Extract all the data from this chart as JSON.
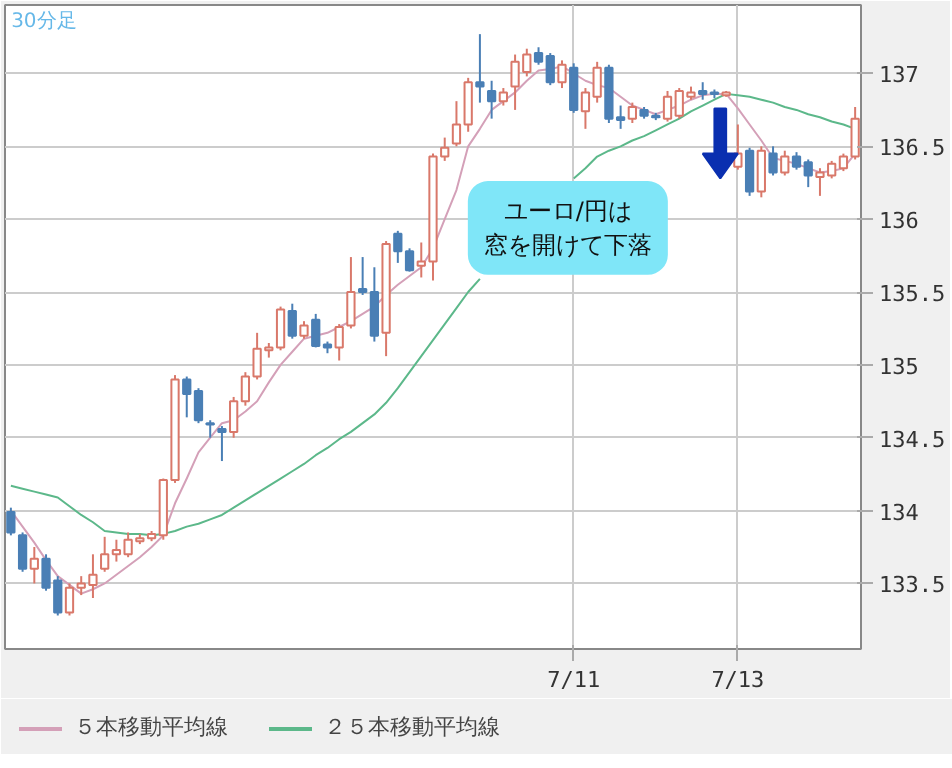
{
  "chart_data": {
    "type": "candlestick",
    "title": "30分足",
    "annotations": [
      "ユーロ/円は窓を開けて下落"
    ],
    "categories": [
      null,
      null,
      null,
      null,
      null,
      null,
      null,
      null,
      null,
      null,
      null,
      null,
      null,
      null,
      null,
      null,
      null,
      null,
      null,
      null,
      null,
      null,
      null,
      null,
      null,
      null,
      null,
      null,
      null,
      null,
      null,
      null,
      null,
      null,
      null,
      null,
      null,
      null,
      null,
      null,
      null,
      null,
      null,
      null,
      null,
      null,
      null,
      null,
      "7/11",
      null,
      null,
      null,
      null,
      null,
      null,
      null,
      null,
      null,
      null,
      null,
      null,
      null,
      "7/13",
      null,
      null,
      null,
      null,
      null,
      null,
      null,
      null,
      null,
      null
    ],
    "ohlc": [
      [
        133.99,
        134.02,
        133.83,
        133.85
      ],
      [
        133.83,
        133.85,
        133.58,
        133.6
      ],
      [
        133.6,
        133.75,
        133.5,
        133.67
      ],
      [
        133.67,
        133.7,
        133.45,
        133.47
      ],
      [
        133.52,
        133.55,
        133.28,
        133.3
      ],
      [
        133.3,
        133.5,
        133.28,
        133.47
      ],
      [
        133.47,
        133.55,
        133.42,
        133.5
      ],
      [
        133.49,
        133.7,
        133.4,
        133.56
      ],
      [
        133.6,
        133.82,
        133.58,
        133.7
      ],
      [
        133.7,
        133.8,
        133.65,
        133.73
      ],
      [
        133.7,
        133.85,
        133.68,
        133.8
      ],
      [
        133.79,
        133.84,
        133.77,
        133.81
      ],
      [
        133.81,
        133.86,
        133.79,
        133.84
      ],
      [
        133.83,
        134.22,
        133.8,
        134.21
      ],
      [
        134.21,
        134.93,
        134.19,
        134.9
      ],
      [
        134.9,
        134.92,
        134.64,
        134.8
      ],
      [
        134.82,
        134.84,
        134.6,
        134.62
      ],
      [
        134.6,
        134.62,
        134.5,
        134.59
      ],
      [
        134.56,
        134.58,
        134.34,
        134.54
      ],
      [
        134.54,
        134.78,
        134.5,
        134.75
      ],
      [
        134.75,
        134.95,
        134.72,
        134.92
      ],
      [
        134.92,
        135.22,
        134.9,
        135.11
      ],
      [
        135.1,
        135.15,
        135.05,
        135.12
      ],
      [
        135.12,
        135.4,
        135.1,
        135.38
      ],
      [
        135.37,
        135.42,
        135.18,
        135.2
      ],
      [
        135.2,
        135.3,
        135.18,
        135.27
      ],
      [
        135.31,
        135.35,
        135.12,
        135.13
      ],
      [
        135.14,
        135.16,
        135.08,
        135.12
      ],
      [
        135.12,
        135.28,
        135.03,
        135.26
      ],
      [
        135.27,
        135.74,
        135.25,
        135.5
      ],
      [
        135.52,
        135.74,
        135.48,
        135.5
      ],
      [
        135.5,
        135.67,
        135.16,
        135.2
      ],
      [
        135.22,
        135.85,
        135.06,
        135.83
      ],
      [
        135.9,
        135.92,
        135.7,
        135.78
      ],
      [
        135.78,
        135.8,
        135.64,
        135.65
      ],
      [
        135.68,
        135.84,
        135.6,
        135.71
      ],
      [
        135.71,
        136.45,
        135.58,
        136.43
      ],
      [
        136.43,
        136.56,
        136.4,
        136.49
      ],
      [
        136.52,
        136.81,
        136.5,
        136.65
      ],
      [
        136.65,
        136.97,
        136.6,
        136.94
      ],
      [
        136.94,
        137.27,
        136.8,
        136.91
      ],
      [
        136.88,
        136.95,
        136.69,
        136.81
      ],
      [
        136.81,
        136.9,
        136.78,
        136.87
      ],
      [
        136.91,
        137.13,
        136.75,
        137.08
      ],
      [
        137.01,
        137.17,
        136.98,
        137.13
      ],
      [
        137.14,
        137.18,
        137.06,
        137.08
      ],
      [
        137.12,
        137.14,
        136.92,
        136.94
      ],
      [
        136.94,
        137.09,
        136.9,
        137.06
      ],
      [
        137.04,
        137.07,
        136.73,
        136.75
      ],
      [
        136.74,
        136.9,
        136.62,
        136.87
      ],
      [
        136.84,
        137.08,
        136.8,
        137.04
      ],
      [
        137.04,
        137.06,
        136.66,
        136.69
      ],
      [
        136.7,
        136.78,
        136.62,
        136.68
      ],
      [
        136.69,
        136.8,
        136.66,
        136.77
      ],
      [
        136.75,
        136.77,
        136.69,
        136.71
      ],
      [
        136.71,
        136.73,
        136.68,
        136.7
      ],
      [
        136.69,
        136.88,
        136.67,
        136.84
      ],
      [
        136.71,
        136.9,
        136.69,
        136.88
      ],
      [
        136.84,
        136.91,
        136.82,
        136.87
      ],
      [
        136.88,
        136.94,
        136.82,
        136.86
      ],
      [
        136.87,
        136.89,
        136.83,
        136.86
      ],
      [
        136.85,
        136.88,
        136.84,
        136.87
      ],
      [
        136.36,
        136.65,
        136.34,
        136.45
      ],
      [
        136.47,
        136.49,
        136.16,
        136.19
      ],
      [
        136.19,
        136.5,
        136.15,
        136.47
      ],
      [
        136.45,
        136.5,
        136.3,
        136.32
      ],
      [
        136.32,
        136.47,
        136.3,
        136.43
      ],
      [
        136.43,
        136.46,
        136.34,
        136.36
      ],
      [
        136.39,
        136.41,
        136.22,
        136.3
      ],
      [
        136.29,
        136.35,
        136.16,
        136.32
      ],
      [
        136.3,
        136.4,
        136.28,
        136.38
      ],
      [
        136.35,
        136.45,
        136.33,
        136.43
      ],
      [
        136.43,
        136.77,
        136.41,
        136.69
      ]
    ],
    "series": [
      {
        "name": "５本移動平均線",
        "type": "line",
        "color": "#d4a0b8",
        "values": [
          134.0,
          133.89,
          133.78,
          133.66,
          133.55,
          133.49,
          133.43,
          133.46,
          133.5,
          133.56,
          133.62,
          133.68,
          133.75,
          133.83,
          134.05,
          134.22,
          134.4,
          134.5,
          134.6,
          134.62,
          134.68,
          134.75,
          134.88,
          135.0,
          135.09,
          135.18,
          135.2,
          135.22,
          135.26,
          135.3,
          135.35,
          135.4,
          135.48,
          135.55,
          135.61,
          135.67,
          135.8,
          136.0,
          136.2,
          136.5,
          136.62,
          136.75,
          136.81,
          136.87,
          136.95,
          137.02,
          137.03,
          137.05,
          137.0,
          136.95,
          136.92,
          136.9,
          136.84,
          136.78,
          136.75,
          136.72,
          136.75,
          136.78,
          136.82,
          136.85,
          136.86,
          136.86,
          136.76,
          136.65,
          136.54,
          136.42,
          136.4,
          136.38,
          136.35,
          136.32,
          136.33,
          136.35,
          136.45
        ]
      },
      {
        "name": "２５本移動平均線",
        "type": "line",
        "color": "#5cb88a",
        "values": [
          134.17,
          134.15,
          134.13,
          134.11,
          134.09,
          134.03,
          133.97,
          133.92,
          133.86,
          133.85,
          133.84,
          133.84,
          133.83,
          133.84,
          133.86,
          133.89,
          133.91,
          133.94,
          133.97,
          134.02,
          134.07,
          134.12,
          134.17,
          134.22,
          134.27,
          134.32,
          134.38,
          134.43,
          134.49,
          134.54,
          134.6,
          134.66,
          134.74,
          134.84,
          134.95,
          135.06,
          135.17,
          135.28,
          135.39,
          135.5,
          135.59,
          null,
          null,
          null,
          null,
          null,
          null,
          null,
          136.28,
          136.35,
          136.43,
          136.47,
          136.5,
          136.54,
          136.57,
          136.61,
          136.65,
          136.69,
          136.74,
          136.78,
          136.82,
          136.86,
          136.85,
          136.84,
          136.82,
          136.8,
          136.77,
          136.75,
          136.72,
          136.7,
          136.67,
          136.65,
          136.62
        ]
      }
    ],
    "ylim": [
      133.05,
      137.47
    ],
    "yticks": [
      133.5,
      134,
      134.5,
      135,
      135.5,
      136,
      136.5,
      137
    ],
    "grid": true,
    "legend": "bottom"
  }
}
